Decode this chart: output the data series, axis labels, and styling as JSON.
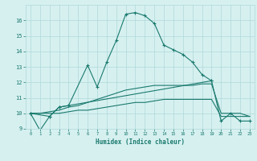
{
  "xlabel": "Humidex (Indice chaleur)",
  "x": [
    0,
    1,
    2,
    3,
    4,
    5,
    6,
    7,
    8,
    9,
    10,
    11,
    12,
    13,
    14,
    15,
    16,
    17,
    18,
    19,
    20,
    21,
    22,
    23
  ],
  "line1": [
    10.0,
    8.9,
    9.8,
    10.4,
    10.5,
    null,
    13.1,
    11.7,
    13.3,
    14.7,
    16.4,
    16.5,
    16.3,
    15.8,
    14.4,
    14.1,
    13.8,
    13.3,
    12.5,
    12.1,
    null,
    null,
    null,
    null
  ],
  "line2": [
    10.0,
    null,
    9.8,
    10.4,
    10.5,
    null,
    null,
    null,
    null,
    null,
    null,
    null,
    null,
    null,
    null,
    null,
    null,
    null,
    null,
    12.1,
    9.5,
    10.0,
    9.5,
    9.5
  ],
  "line3_min": [
    10.0,
    10.0,
    10.0,
    10.0,
    10.1,
    10.2,
    10.2,
    10.3,
    10.4,
    10.5,
    10.6,
    10.7,
    10.7,
    10.8,
    10.9,
    10.9,
    10.9,
    10.9,
    10.9,
    10.9,
    9.8,
    9.8,
    9.8,
    9.8
  ],
  "line3_max": [
    10.0,
    10.0,
    10.1,
    10.2,
    10.4,
    10.5,
    10.7,
    10.9,
    11.1,
    11.3,
    11.5,
    11.6,
    11.7,
    11.8,
    11.8,
    11.8,
    11.8,
    11.8,
    11.9,
    11.9,
    10.0,
    10.0,
    10.0,
    9.8
  ],
  "color": "#1a7a6e",
  "bg_color": "#d6f0f0",
  "grid_color": "#b0d8d8",
  "ylim": [
    9,
    17
  ],
  "yticks": [
    9,
    10,
    11,
    12,
    13,
    14,
    15,
    16
  ],
  "xlim": [
    -0.5,
    23.5
  ],
  "xticks": [
    0,
    1,
    2,
    3,
    4,
    5,
    6,
    7,
    8,
    9,
    10,
    11,
    12,
    13,
    14,
    15,
    16,
    17,
    18,
    19,
    20,
    21,
    22,
    23
  ]
}
